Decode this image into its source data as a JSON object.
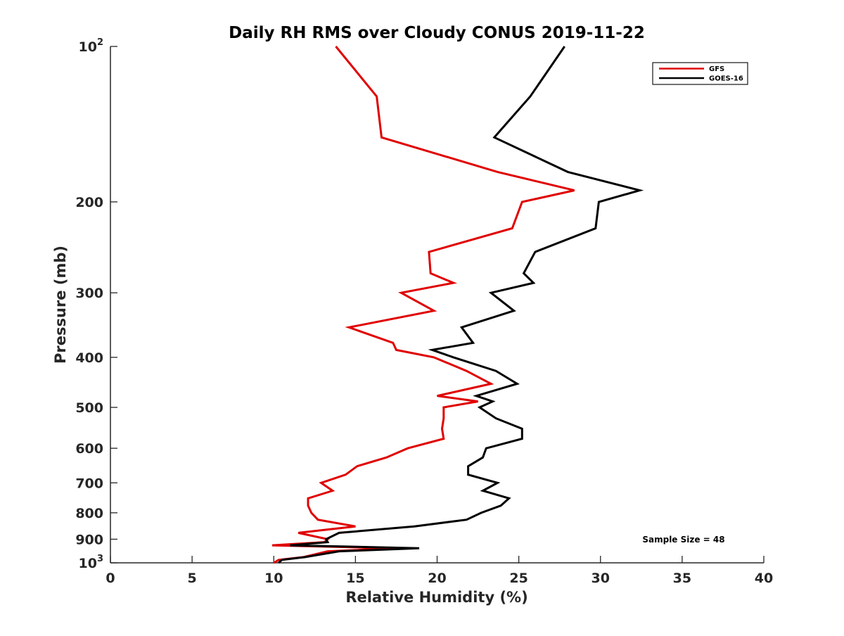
{
  "chart_data": {
    "type": "line",
    "title": "Daily RH RMS over Cloudy CONUS 2019-11-22",
    "xlabel": "Relative Humidity (%)",
    "ylabel": "Pressure (mb)",
    "xlim": [
      0,
      40
    ],
    "ylim": [
      100,
      1000
    ],
    "yscale": "log",
    "y_reversed": true,
    "grid": false,
    "legend_position": "top-right",
    "x_ticks": [
      0,
      5,
      10,
      15,
      20,
      25,
      30,
      35,
      40
    ],
    "y_ticks": [
      {
        "value": 100,
        "base": "10",
        "exp": "2"
      },
      {
        "value": 200,
        "label": "200"
      },
      {
        "value": 300,
        "label": "300"
      },
      {
        "value": 400,
        "label": "400"
      },
      {
        "value": 500,
        "label": "500"
      },
      {
        "value": 600,
        "label": "600"
      },
      {
        "value": 700,
        "label": "700"
      },
      {
        "value": 800,
        "label": "800"
      },
      {
        "value": 900,
        "label": "900"
      },
      {
        "value": 1000,
        "base": "10",
        "exp": "3"
      }
    ],
    "annotation": "Sample Size = 48",
    "series": [
      {
        "name": "GFS",
        "color": "#e00000",
        "points": [
          [
            13.8,
            100
          ],
          [
            16.3,
            125
          ],
          [
            16.6,
            150
          ],
          [
            23.7,
            175
          ],
          [
            28.4,
            190
          ],
          [
            25.2,
            200
          ],
          [
            24.6,
            225
          ],
          [
            19.5,
            250
          ],
          [
            19.6,
            275
          ],
          [
            21.0,
            287
          ],
          [
            17.8,
            300
          ],
          [
            19.8,
            325
          ],
          [
            14.6,
            350
          ],
          [
            17.3,
            375
          ],
          [
            17.5,
            387
          ],
          [
            19.8,
            400
          ],
          [
            21.8,
            425
          ],
          [
            23.3,
            450
          ],
          [
            20.0,
            475
          ],
          [
            22.5,
            487
          ],
          [
            20.4,
            500
          ],
          [
            20.4,
            525
          ],
          [
            20.3,
            550
          ],
          [
            20.4,
            575
          ],
          [
            18.2,
            600
          ],
          [
            16.9,
            625
          ],
          [
            15.1,
            650
          ],
          [
            14.4,
            675
          ],
          [
            12.9,
            700
          ],
          [
            13.6,
            725
          ],
          [
            12.1,
            750
          ],
          [
            12.1,
            775
          ],
          [
            12.3,
            800
          ],
          [
            12.7,
            825
          ],
          [
            15.0,
            850
          ],
          [
            11.5,
            875
          ],
          [
            13.3,
            900
          ],
          [
            13.1,
            912
          ],
          [
            9.9,
            925
          ],
          [
            17.5,
            937
          ],
          [
            13.3,
            950
          ],
          [
            11.8,
            975
          ],
          [
            10.3,
            987
          ],
          [
            10.0,
            1000
          ]
        ]
      },
      {
        "name": "GOES-16",
        "color": "#000000",
        "points": [
          [
            27.8,
            100
          ],
          [
            25.7,
            125
          ],
          [
            23.5,
            150
          ],
          [
            28.0,
            175
          ],
          [
            32.4,
            190
          ],
          [
            29.9,
            200
          ],
          [
            29.7,
            225
          ],
          [
            26.0,
            250
          ],
          [
            25.3,
            275
          ],
          [
            25.9,
            287
          ],
          [
            23.3,
            300
          ],
          [
            24.7,
            325
          ],
          [
            21.5,
            350
          ],
          [
            22.2,
            375
          ],
          [
            19.7,
            387
          ],
          [
            21.0,
            400
          ],
          [
            23.6,
            425
          ],
          [
            24.9,
            450
          ],
          [
            22.4,
            475
          ],
          [
            23.4,
            487
          ],
          [
            22.6,
            500
          ],
          [
            23.6,
            525
          ],
          [
            25.2,
            550
          ],
          [
            25.2,
            575
          ],
          [
            23.0,
            600
          ],
          [
            22.8,
            625
          ],
          [
            21.9,
            650
          ],
          [
            21.9,
            675
          ],
          [
            23.7,
            700
          ],
          [
            22.8,
            725
          ],
          [
            24.4,
            750
          ],
          [
            23.9,
            775
          ],
          [
            22.7,
            800
          ],
          [
            21.8,
            825
          ],
          [
            18.6,
            850
          ],
          [
            14.0,
            875
          ],
          [
            13.2,
            900
          ],
          [
            13.3,
            912
          ],
          [
            11.0,
            925
          ],
          [
            18.9,
            937
          ],
          [
            14.0,
            950
          ],
          [
            11.9,
            975
          ],
          [
            10.5,
            987
          ],
          [
            10.3,
            1000
          ]
        ]
      }
    ]
  }
}
